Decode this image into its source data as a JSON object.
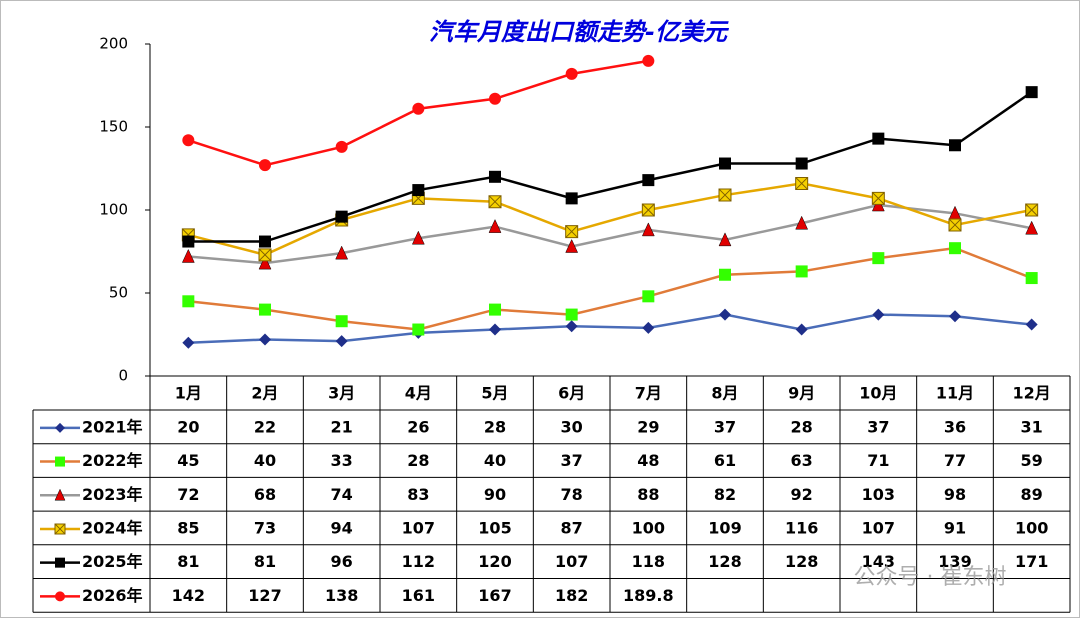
{
  "chart_data": {
    "type": "line",
    "title": "汽车月度出口额走势-亿美元",
    "categories": [
      "1月",
      "2月",
      "3月",
      "4月",
      "5月",
      "6月",
      "7月",
      "8月",
      "9月",
      "10月",
      "11月",
      "12月"
    ],
    "ylim": [
      0,
      200
    ],
    "yticks": [
      0,
      50,
      100,
      150,
      200
    ],
    "grid": false,
    "series": [
      {
        "name": "2021年",
        "color": "#4a6cb8",
        "marker": "diamond",
        "marker_color": "#1f2f8a",
        "values": [
          20,
          22,
          21,
          26,
          28,
          30,
          29,
          37,
          28,
          37,
          36,
          31
        ]
      },
      {
        "name": "2022年",
        "color": "#e07b39",
        "marker": "square",
        "marker_color": "#33ff00",
        "values": [
          45,
          40,
          33,
          28,
          40,
          37,
          48,
          61,
          63,
          71,
          77,
          59
        ]
      },
      {
        "name": "2023年",
        "color": "#999999",
        "marker": "triangle",
        "marker_color": "#e00000",
        "values": [
          72,
          68,
          74,
          83,
          90,
          78,
          88,
          82,
          92,
          103,
          98,
          89
        ]
      },
      {
        "name": "2024年",
        "color": "#e5a800",
        "marker": "x",
        "marker_color": "#f5d000",
        "values": [
          85,
          73,
          94,
          107,
          105,
          87,
          100,
          109,
          116,
          107,
          91,
          100
        ]
      },
      {
        "name": "2025年",
        "color": "#000000",
        "marker": "square",
        "marker_color": "#000000",
        "values": [
          81,
          81,
          96,
          112,
          120,
          107,
          118,
          128,
          128,
          143,
          139,
          171
        ]
      },
      {
        "name": "2026年",
        "color": "#ff1010",
        "marker": "circle",
        "marker_color": "#ff1010",
        "values": [
          142,
          127,
          138,
          161,
          167,
          182,
          189.8,
          null,
          null,
          null,
          null,
          null
        ]
      }
    ],
    "watermark": "公众号 · 崔东树"
  }
}
